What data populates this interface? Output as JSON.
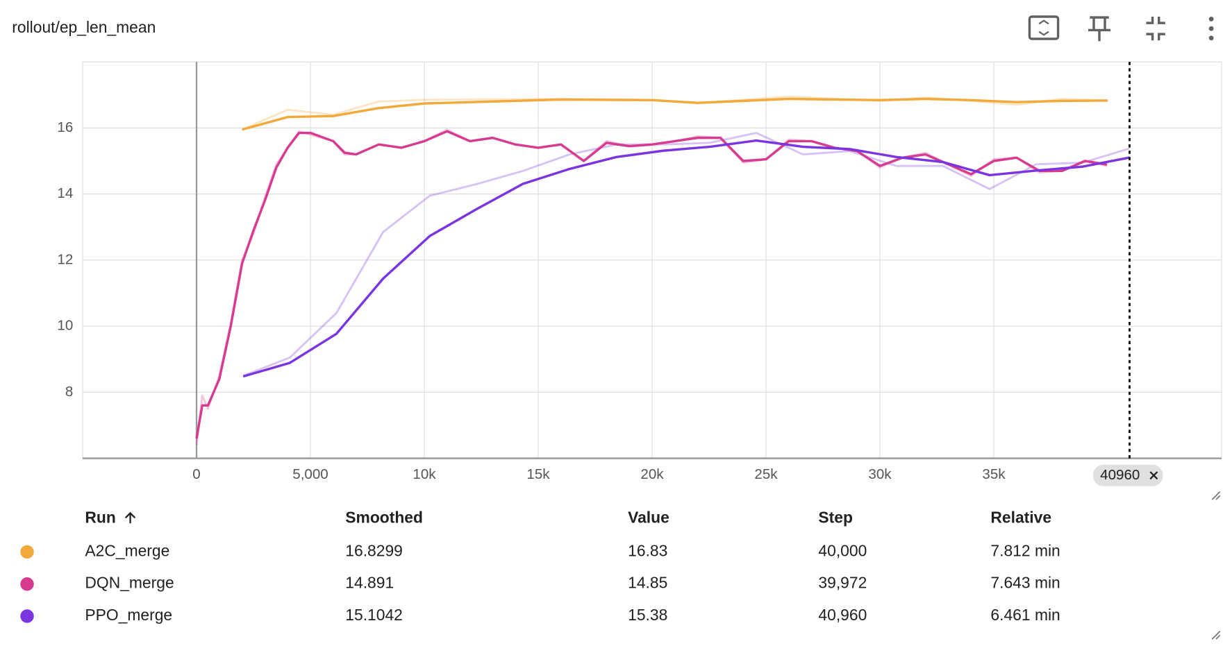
{
  "chart_data": {
    "type": "line",
    "title": "rollout/ep_len_mean",
    "xlim": [
      -5000,
      45000
    ],
    "ylim": [
      6,
      18
    ],
    "xticks": [
      0,
      {
        "value": 5000,
        "label": "5,000"
      },
      {
        "value": 10000,
        "label": "10k"
      },
      {
        "value": 15000,
        "label": "15k"
      },
      {
        "value": 20000,
        "label": "20k"
      },
      {
        "value": 25000,
        "label": "25k"
      },
      {
        "value": 30000,
        "label": "30k"
      },
      {
        "value": 35000,
        "label": "35k"
      }
    ],
    "yticks": [
      8,
      10,
      12,
      14,
      16
    ],
    "grid": true,
    "step_marker": 40960,
    "series": [
      {
        "name": "A2C_merge",
        "color": "#f2a93b",
        "x": [
          2000,
          4000,
          6000,
          8000,
          10000,
          16000,
          20000,
          22000,
          26000,
          30000,
          32000,
          34000,
          36000,
          38000,
          40000
        ],
        "values": [
          15.95,
          16.33,
          16.36,
          16.6,
          16.74,
          16.86,
          16.84,
          16.76,
          16.88,
          16.84,
          16.88,
          16.84,
          16.78,
          16.82,
          16.8299
        ],
        "raw": [
          15.95,
          16.55,
          16.4,
          16.8,
          16.85,
          16.88,
          16.85,
          16.75,
          16.95,
          16.82,
          16.92,
          16.82,
          16.7,
          16.88,
          16.83
        ]
      },
      {
        "name": "DQN_merge",
        "color": "#d63b8f",
        "x": [
          0,
          250,
          500,
          1000,
          1500,
          2000,
          2500,
          3000,
          3500,
          4000,
          4500,
          5000,
          6000,
          6500,
          7000,
          8000,
          9000,
          10000,
          11000,
          12000,
          13000,
          14000,
          15000,
          16000,
          17000,
          18000,
          19000,
          20000,
          21000,
          22000,
          23000,
          24000,
          25000,
          26000,
          27000,
          28000,
          29000,
          30000,
          31000,
          32000,
          33000,
          34000,
          35000,
          36000,
          37000,
          38000,
          39000,
          39972
        ],
        "values": [
          6.6,
          7.6,
          7.6,
          8.4,
          10,
          11.9,
          12.9,
          13.8,
          14.8,
          15.4,
          15.85,
          15.85,
          15.6,
          15.25,
          15.2,
          15.5,
          15.4,
          15.6,
          15.9,
          15.6,
          15.7,
          15.5,
          15.4,
          15.5,
          15.0,
          15.55,
          15.45,
          15.5,
          15.6,
          15.7,
          15.7,
          15.0,
          15.05,
          15.6,
          15.6,
          15.4,
          15.3,
          14.85,
          15.1,
          15.2,
          14.9,
          14.6,
          15.0,
          15.1,
          14.7,
          14.7,
          15.0,
          14.891
        ],
        "raw": [
          6.4,
          7.9,
          7.5,
          8.5,
          10.1,
          12.0,
          12.8,
          13.9,
          14.9,
          15.4,
          15.9,
          15.8,
          15.6,
          15.2,
          15.2,
          15.5,
          15.4,
          15.6,
          15.95,
          15.6,
          15.7,
          15.5,
          15.4,
          15.5,
          15.0,
          15.6,
          15.45,
          15.5,
          15.6,
          15.75,
          15.7,
          14.95,
          15.05,
          15.65,
          15.6,
          15.4,
          15.3,
          14.8,
          15.1,
          15.25,
          14.9,
          14.55,
          15.05,
          15.1,
          14.65,
          14.7,
          15.0,
          14.85
        ]
      },
      {
        "name": "PPO_merge",
        "color": "#7b35e0",
        "x": [
          2048,
          4096,
          6144,
          8192,
          10240,
          12288,
          14336,
          16384,
          18432,
          20480,
          22528,
          24576,
          26624,
          28672,
          30720,
          32768,
          34816,
          36864,
          38912,
          40960
        ],
        "values": [
          8.48,
          8.89,
          9.77,
          11.44,
          12.73,
          13.54,
          14.31,
          14.76,
          15.12,
          15.31,
          15.43,
          15.62,
          15.43,
          15.36,
          15.12,
          14.97,
          14.57,
          14.71,
          14.83,
          15.1042
        ],
        "raw": [
          8.5,
          9.05,
          10.4,
          12.85,
          13.95,
          14.3,
          14.7,
          15.2,
          15.5,
          15.5,
          15.55,
          15.85,
          15.2,
          15.3,
          14.85,
          14.85,
          14.15,
          14.9,
          14.95,
          15.38
        ]
      }
    ]
  },
  "table": {
    "columns": [
      "Run",
      "Smoothed",
      "Value",
      "Step",
      "Relative"
    ],
    "rows": [
      {
        "smoothed": "16.8299",
        "value": "16.83",
        "step": "40,000",
        "relative": "7.812 min"
      },
      {
        "smoothed": "14.891",
        "value": "14.85",
        "step": "39,972",
        "relative": "7.643 min"
      },
      {
        "smoothed": "15.1042",
        "value": "15.38",
        "step": "40,960",
        "relative": "6.461 min"
      }
    ]
  }
}
